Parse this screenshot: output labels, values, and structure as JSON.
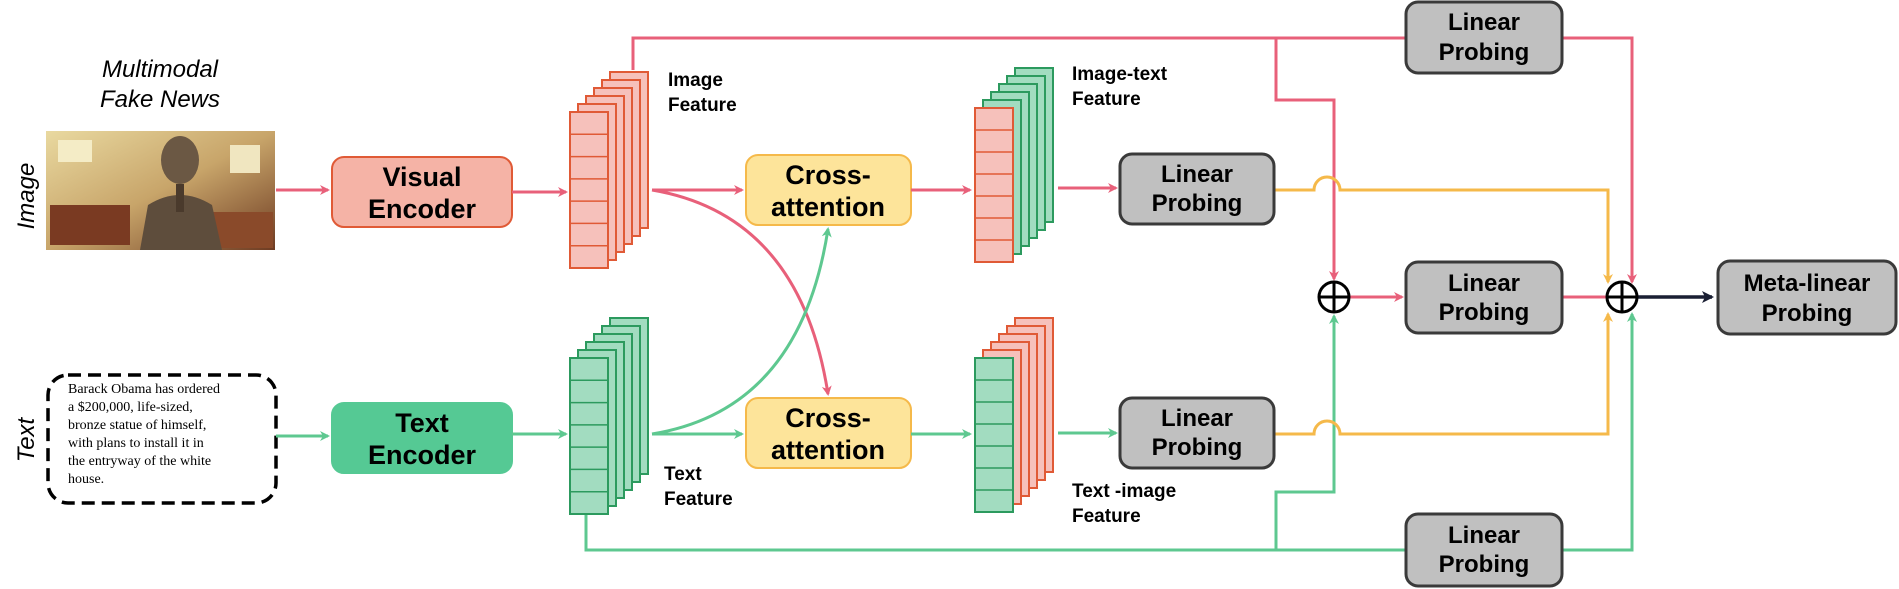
{
  "diagram": {
    "title_line1": "Multimodal",
    "title_line2": "Fake News",
    "side_label_image": "Image",
    "side_label_text": "Text",
    "news_text_lines": [
      "Barack Obama has ordered",
      "a $200,000, life-sized,",
      "bronze statue of himself,",
      "with plans to install it in",
      "the entryway of the white",
      "house."
    ],
    "visual_encoder": [
      "Visual",
      "Encoder"
    ],
    "text_encoder": [
      "Text",
      "Encoder"
    ],
    "cross_attention_top": [
      "Cross-",
      "attention"
    ],
    "cross_attention_bottom": [
      "Cross-",
      "attention"
    ],
    "image_feature": [
      "Image",
      "Feature"
    ],
    "text_feature": [
      "Text",
      "Feature"
    ],
    "image_text_feature": [
      "Image-text",
      "Feature"
    ],
    "text_image_feature": [
      "Text -image",
      "Feature"
    ],
    "probe_top": [
      "Linear",
      "Probing"
    ],
    "probe_image_text": [
      "Linear",
      "Probing"
    ],
    "probe_concat": [
      "Linear",
      "Probing"
    ],
    "probe_text_image": [
      "Linear",
      "Probing"
    ],
    "probe_bottom": [
      "Linear",
      "Probing"
    ],
    "meta_probe": [
      "Meta-linear",
      "Probing"
    ],
    "plus_symbol": "⊕",
    "colors": {
      "image_flow": "#e8607a",
      "text_flow": "#5ec890",
      "probe_flow": "#f5b94a",
      "meta_flow": "#1a1f33",
      "visual_encoder_fill": "#f5b3a6",
      "text_encoder_fill": "#55c994",
      "cross_attention_fill": "#fde49a",
      "probe_fill": "#c0c0c0"
    }
  }
}
